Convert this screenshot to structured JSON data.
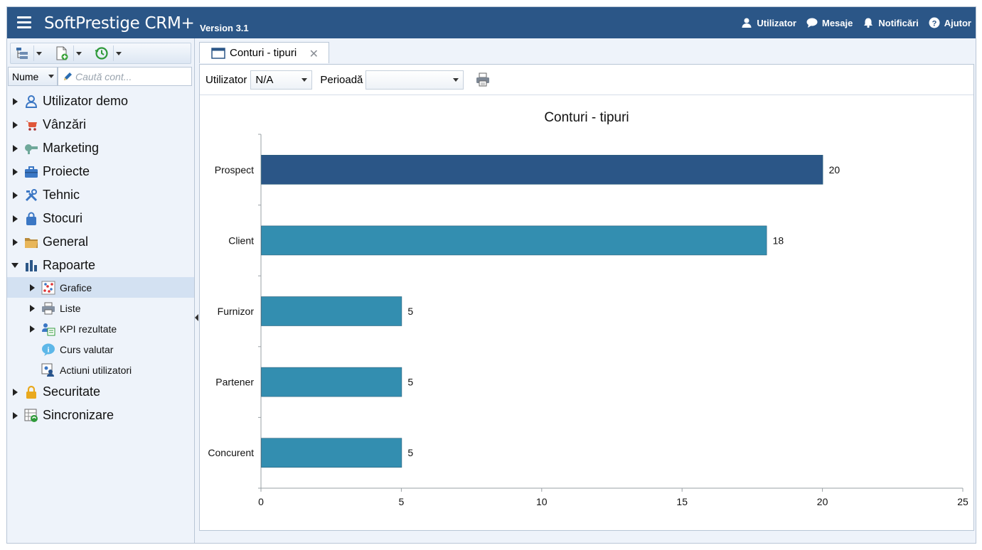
{
  "header": {
    "app_title": "SoftPrestige CRM+",
    "version": "Version 3.1",
    "nav": [
      {
        "label": "Utilizator",
        "icon": "user-icon"
      },
      {
        "label": "Mesaje",
        "icon": "speech-bubble-icon"
      },
      {
        "label": "Notificări",
        "icon": "bell-icon"
      },
      {
        "label": "Ajutor",
        "icon": "help-icon"
      }
    ]
  },
  "sidebar": {
    "search": {
      "field": "Nume",
      "placeholder": "Caută cont..."
    },
    "tree": [
      {
        "label": "Utilizator demo",
        "icon": "user-demo-icon"
      },
      {
        "label": "Vânzări",
        "icon": "cart-icon"
      },
      {
        "label": "Marketing",
        "icon": "megaphone-icon"
      },
      {
        "label": "Proiecte",
        "icon": "briefcase-icon"
      },
      {
        "label": "Tehnic",
        "icon": "tools-icon"
      },
      {
        "label": "Stocuri",
        "icon": "bag-icon"
      },
      {
        "label": "General",
        "icon": "folder-icon"
      },
      {
        "label": "Rapoarte",
        "icon": "bar-chart-icon",
        "expanded": true,
        "children": [
          {
            "label": "Grafice",
            "icon": "scatter-chart-icon",
            "selected": true
          },
          {
            "label": "Liste",
            "icon": "printer-icon"
          },
          {
            "label": "KPI rezultate",
            "icon": "kpi-icon"
          },
          {
            "label": "Curs valutar",
            "icon": "info-icon"
          },
          {
            "label": "Actiuni utilizatori",
            "icon": "users-actions-icon"
          }
        ]
      },
      {
        "label": "Securitate",
        "icon": "lock-icon"
      },
      {
        "label": "Sincronizare",
        "icon": "sync-table-icon"
      }
    ]
  },
  "tab": {
    "label": "Conturi - tipuri"
  },
  "filters": {
    "user_label": "Utilizator",
    "user_value": "N/A",
    "period_label": "Perioadă",
    "period_value": ""
  },
  "colors": {
    "header": "#2b5687",
    "bar_highlight": "#2b5687",
    "bar_default": "#338eb0"
  },
  "chart_data": {
    "type": "bar",
    "orientation": "horizontal",
    "title": "Conturi - tipuri",
    "categories": [
      "Prospect",
      "Client",
      "Furnizor",
      "Partener",
      "Concurent"
    ],
    "values": [
      20,
      18,
      5,
      5,
      5
    ],
    "xlim": [
      0,
      25
    ],
    "xticks": [
      0,
      5,
      10,
      15,
      20,
      25
    ],
    "grid": false,
    "legend": "none"
  }
}
